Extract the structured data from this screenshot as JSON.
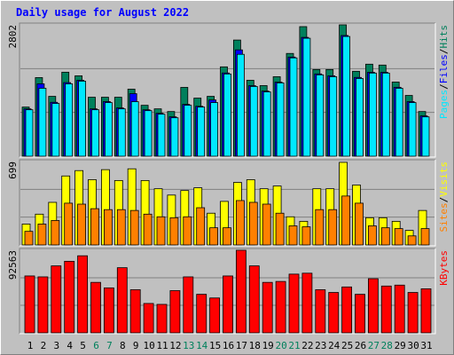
{
  "chart_data": [
    {
      "type": "bar",
      "title": "Daily usage for August 2022",
      "ylim": [
        0,
        2802
      ],
      "yticks": [
        2802
      ],
      "legend_separator": "/",
      "series": [
        {
          "name": "Hits",
          "color": "#00805c",
          "values": [
            1048,
            1677,
            1277,
            1792,
            1715,
            1258,
            1258,
            1258,
            1430,
            1086,
            1010,
            953,
            1468,
            1239,
            1277,
            1906,
            2478,
            1620,
            1506,
            1696,
            2192,
            2764,
            1849,
            1849,
            2802,
            1811,
            1963,
            1944,
            1582,
            1296,
            953
          ]
        },
        {
          "name": "Files",
          "color": "#0000ff",
          "values": [
            1010,
            1544,
            1150,
            1570,
            1620,
            1010,
            1165,
            1030,
            1334,
            990,
            915,
            840,
            1105,
            1065,
            1200,
            1775,
            2268,
            1505,
            1390,
            1580,
            2115,
            2535,
            1755,
            1715,
            2575,
            1680,
            1790,
            1790,
            1470,
            1165,
            860
          ]
        },
        {
          "name": "Pages",
          "color": "#00e8ff",
          "values": [
            991,
            1449,
            1125,
            1544,
            1601,
            991,
            1144,
            1010,
            1163,
            972,
            896,
            820,
            1086,
            1048,
            1144,
            1754,
            2173,
            1487,
            1372,
            1563,
            2097,
            2516,
            1735,
            1696,
            2554,
            1658,
            1773,
            1773,
            1449,
            1144,
            839
          ]
        }
      ]
    },
    {
      "type": "bar",
      "ylim": [
        0,
        699
      ],
      "yticks": [
        699
      ],
      "legend_separator": "/",
      "series": [
        {
          "name": "Visits",
          "color": "#ffff00",
          "values": [
            175,
            258,
            357,
            578,
            623,
            547,
            631,
            540,
            638,
            540,
            471,
            418,
            456,
            479,
            266,
            365,
            524,
            547,
            471,
            494,
            236,
            198,
            471,
            471,
            692,
            502,
            228,
            228,
            198,
            122,
            289
          ]
        },
        {
          "name": "Sites",
          "color": "#ff8000",
          "values": [
            114,
            175,
            205,
            350,
            342,
            304,
            296,
            296,
            289,
            258,
            236,
            228,
            236,
            312,
            144,
            144,
            372,
            357,
            342,
            266,
            160,
            152,
            296,
            296,
            410,
            350,
            160,
            144,
            137,
            76,
            137
          ]
        }
      ]
    },
    {
      "type": "bar",
      "ylim": [
        0,
        92563
      ],
      "yticks": [
        92563
      ],
      "series": [
        {
          "name": "KBytes",
          "color": "#ff0000",
          "values": [
            63767,
            62739,
            75081,
            80223,
            86394,
            56568,
            50397,
            73024,
            48340,
            32912,
            31884,
            47311,
            62739,
            43197,
            39083,
            63767,
            92563,
            75081,
            56568,
            57596,
            65824,
            66853,
            48340,
            45254,
            51425,
            43197,
            60682,
            52454,
            53482,
            45254,
            49368
          ]
        }
      ],
      "categories": [
        "1",
        "2",
        "3",
        "4",
        "5",
        "6",
        "7",
        "8",
        "9",
        "10",
        "11",
        "12",
        "13",
        "14",
        "15",
        "16",
        "17",
        "18",
        "19",
        "20",
        "21",
        "22",
        "23",
        "24",
        "25",
        "26",
        "27",
        "28",
        "29",
        "30",
        "31"
      ],
      "category_colors": [
        "#000000",
        "#000000",
        "#000000",
        "#000000",
        "#000000",
        "#00805c",
        "#00805c",
        "#000000",
        "#000000",
        "#000000",
        "#000000",
        "#000000",
        "#00805c",
        "#00805c",
        "#000000",
        "#000000",
        "#000000",
        "#000000",
        "#000000",
        "#00805c",
        "#00805c",
        "#000000",
        "#000000",
        "#000000",
        "#000000",
        "#000000",
        "#00805c",
        "#00805c",
        "#000000",
        "#000000",
        "#000000"
      ]
    }
  ]
}
